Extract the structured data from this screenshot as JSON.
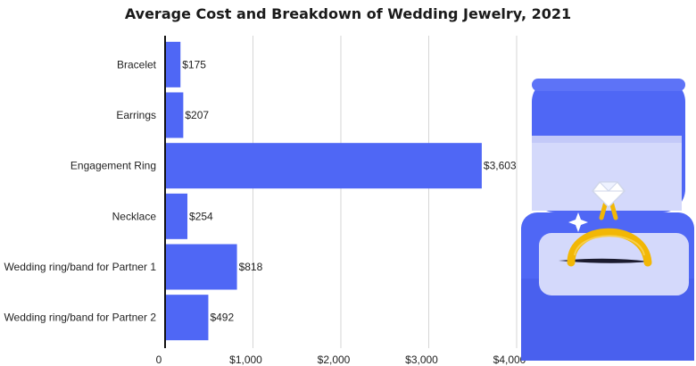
{
  "chart_data": {
    "type": "bar",
    "orientation": "horizontal",
    "title": "Average Cost and Breakdown of Wedding Jewelry, 2021",
    "categories": [
      "Bracelet",
      "Earrings",
      "Engagement Ring",
      "Necklace",
      "Wedding ring/band for Partner 1",
      "Wedding ring/band for Partner 2"
    ],
    "values": [
      175,
      207,
      3603,
      254,
      818,
      492
    ],
    "value_labels": [
      "$175",
      "$207",
      "$3,603",
      "$254",
      "$818",
      "$492"
    ],
    "xlim": [
      0,
      4000
    ],
    "xticks": [
      0,
      1000,
      2000,
      3000,
      4000
    ],
    "xtick_labels": [
      "0",
      "$1,000",
      "$2,000",
      "$3,000",
      "$4,000"
    ],
    "grid": "vertical",
    "bar_color": "#4f67f5"
  },
  "illustration": {
    "icon": "ring-box-icon",
    "box_color": "#4f67f5",
    "lining_color": "#d4d9fb",
    "band_color": "#f2b705",
    "stone_color": "#ffffff"
  }
}
